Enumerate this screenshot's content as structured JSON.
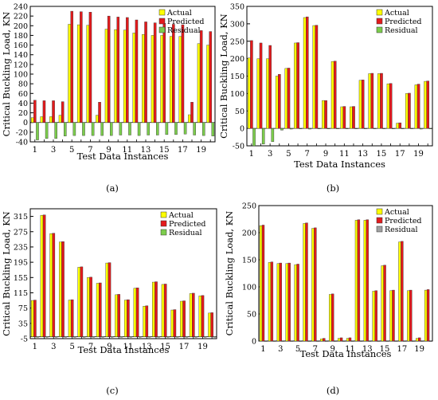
{
  "colors": {
    "actual": "#ffff00",
    "predicted": "#e31a1c",
    "residual": "#7ccd4c",
    "residual_d": "#a0a0a0"
  },
  "chart_data": [
    {
      "panel_label": "(a)",
      "type": "bar",
      "xlabel": "Test Data Instances",
      "ylabel": "Critical Buckling Load, KN",
      "ylim": [
        -40,
        240
      ],
      "yticks": [
        "-40",
        "-20",
        "0",
        "20",
        "40",
        "60",
        "80",
        "100",
        "120",
        "140",
        "160",
        "180",
        "200",
        "220",
        "240"
      ],
      "xtick_labels": [
        "1",
        "3",
        "5",
        "7",
        "9",
        "11",
        "13",
        "15",
        "17",
        "19"
      ],
      "legend": [
        "Actual",
        "Predicted",
        "Residual"
      ],
      "legend_position": "top-right",
      "categories": [
        1,
        2,
        3,
        4,
        5,
        6,
        7,
        8,
        9,
        10,
        11,
        12,
        13,
        14,
        15,
        16,
        17,
        18,
        19,
        20
      ],
      "series": [
        {
          "name": "Actual",
          "values": [
            10,
            12,
            12,
            15,
            203,
            202,
            201,
            15,
            193,
            192,
            191,
            185,
            182,
            180,
            180,
            178,
            178,
            16,
            163,
            160
          ]
        },
        {
          "name": "Predicted",
          "values": [
            46,
            45,
            45,
            43,
            230,
            229,
            228,
            42,
            220,
            218,
            217,
            212,
            208,
            206,
            205,
            203,
            202,
            42,
            190,
            188
          ]
        },
        {
          "name": "Residual",
          "values": [
            -36,
            -33,
            -33,
            -28,
            -27,
            -27,
            -27,
            -27,
            -27,
            -26,
            -26,
            -27,
            -26,
            -26,
            -25,
            -25,
            -24,
            -26,
            -27,
            -28
          ]
        }
      ]
    },
    {
      "panel_label": "(b)",
      "type": "bar",
      "xlabel": "Test Data Instances",
      "ylabel": "Critical Buckling Load, KN",
      "ylim": [
        -50,
        350
      ],
      "yticks": [
        "-50",
        "0",
        "50",
        "100",
        "150",
        "200",
        "250",
        "300",
        "350"
      ],
      "xtick_labels": [
        "1",
        "3",
        "5",
        "7",
        "9",
        "11",
        "13",
        "15",
        "17",
        "19"
      ],
      "legend": [
        "Actual",
        "Predicted",
        "Residual"
      ],
      "legend_position": "top-right",
      "categories": [
        1,
        2,
        3,
        4,
        5,
        6,
        7,
        8,
        9,
        10,
        11,
        12,
        13,
        14,
        15,
        16,
        17,
        18,
        19,
        20
      ],
      "series": [
        {
          "name": "Actual",
          "values": [
            202,
            200,
            200,
            150,
            172,
            245,
            318,
            295,
            80,
            192,
            62,
            62,
            138,
            157,
            157,
            128,
            15,
            100,
            125,
            135
          ]
        },
        {
          "name": "Predicted",
          "values": [
            252,
            245,
            238,
            155,
            173,
            246,
            320,
            296,
            80,
            193,
            63,
            63,
            139,
            158,
            158,
            129,
            16,
            101,
            127,
            136
          ]
        },
        {
          "name": "Residual",
          "values": [
            -50,
            -45,
            -38,
            -5,
            -2,
            -1,
            -2,
            -1,
            0,
            -1,
            -1,
            -1,
            -1,
            -1,
            -1,
            -1,
            -1,
            -1,
            -2,
            -1
          ]
        }
      ]
    },
    {
      "panel_label": "(c)",
      "type": "bar",
      "xlabel": "Test Data Instances",
      "ylabel": "Critical Buckling Load, KN",
      "ylim": [
        -5,
        335
      ],
      "yticks": [
        "-5",
        "35",
        "75",
        "115",
        "155",
        "195",
        "235",
        "275",
        "315"
      ],
      "xtick_labels": [
        "1",
        "3",
        "5",
        "7",
        "9",
        "11",
        "13",
        "15",
        "17",
        "19"
      ],
      "legend": [
        "Actual",
        "Predicted",
        "Residual"
      ],
      "legend_position": "top-right",
      "categories": [
        1,
        2,
        3,
        4,
        5,
        6,
        7,
        8,
        9,
        10,
        11,
        12,
        13,
        14,
        15,
        16,
        17,
        18,
        19,
        20
      ],
      "series": [
        {
          "name": "Actual",
          "values": [
            95,
            318,
            270,
            248,
            96,
            182,
            155,
            140,
            193,
            110,
            96,
            127,
            80,
            143,
            137,
            70,
            93,
            113,
            107,
            62
          ]
        },
        {
          "name": "Predicted",
          "values": [
            96,
            319,
            271,
            249,
            97,
            183,
            156,
            141,
            194,
            111,
            97,
            128,
            81,
            144,
            138,
            71,
            94,
            114,
            108,
            63
          ]
        },
        {
          "name": "Residual",
          "values": [
            -1,
            -1,
            -1,
            -1,
            -1,
            -1,
            -1,
            -1,
            -1,
            -1,
            -1,
            -1,
            -1,
            -1,
            -1,
            -1,
            -1,
            -1,
            -1,
            -1
          ]
        }
      ]
    },
    {
      "panel_label": "(d)",
      "type": "bar",
      "xlabel": "Test Data Instances",
      "ylabel": "Critical Buckling Load, KN",
      "ylim": [
        0,
        250
      ],
      "yticks": [
        "0",
        "50",
        "100",
        "150",
        "200",
        "250"
      ],
      "xtick_labels": [
        "1",
        "3",
        "5",
        "7",
        "9",
        "11",
        "13",
        "15",
        "17",
        "19"
      ],
      "legend": [
        "Actual",
        "Predicted",
        "Residual"
      ],
      "legend_position": "top-right",
      "categories": [
        1,
        2,
        3,
        4,
        5,
        6,
        7,
        8,
        9,
        10,
        11,
        12,
        13,
        14,
        15,
        16,
        17,
        18,
        19,
        20
      ],
      "series": [
        {
          "name": "Actual",
          "values": [
            213,
            145,
            143,
            143,
            141,
            217,
            208,
            4,
            86,
            5,
            5,
            223,
            223,
            92,
            139,
            93,
            183,
            93,
            5,
            94
          ]
        },
        {
          "name": "Predicted",
          "values": [
            214,
            146,
            144,
            144,
            142,
            218,
            209,
            5,
            87,
            6,
            6,
            224,
            224,
            93,
            140,
            94,
            184,
            94,
            6,
            95
          ]
        },
        {
          "name": "Residual",
          "values": [
            0,
            0,
            0,
            0,
            0,
            0,
            0,
            0,
            0,
            0,
            0,
            0,
            0,
            0,
            0,
            0,
            0,
            0,
            0,
            0
          ]
        }
      ]
    }
  ]
}
